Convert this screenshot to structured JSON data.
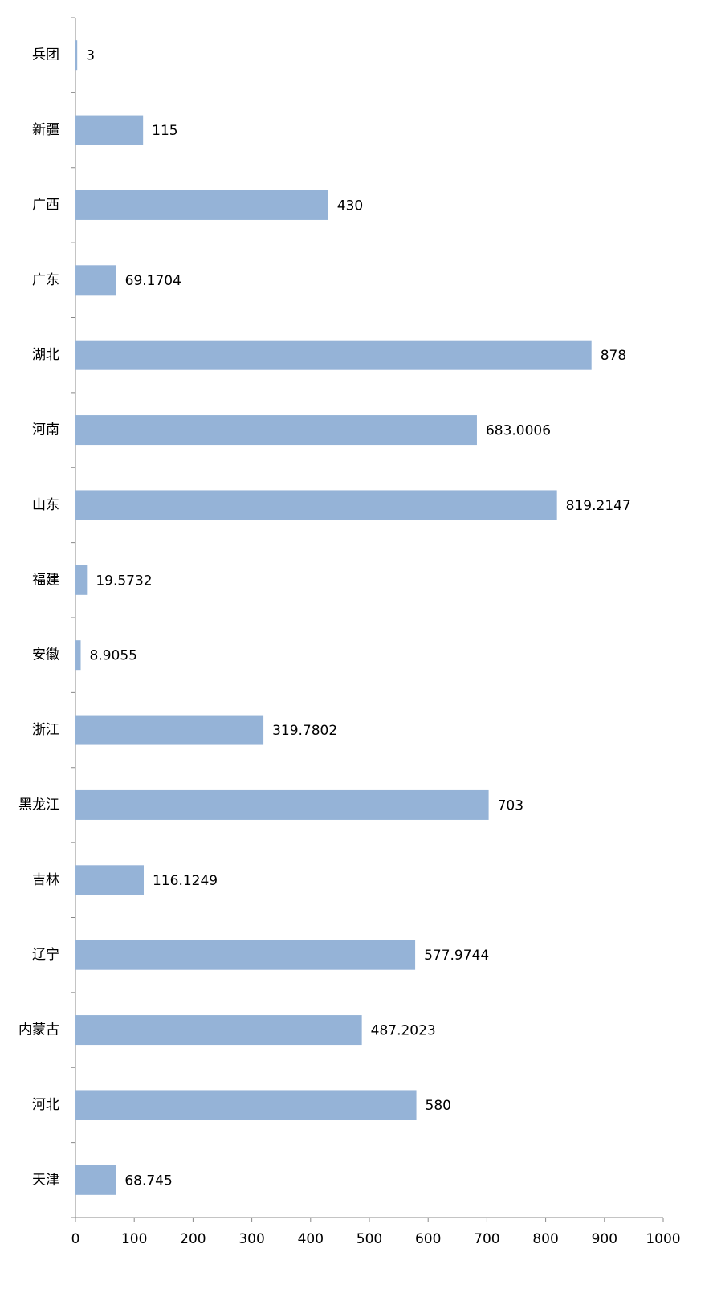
{
  "chart_data": {
    "type": "bar",
    "orientation": "horizontal",
    "categories": [
      "兵团",
      "新疆",
      "广西",
      "广东",
      "湖北",
      "河南",
      "山东",
      "福建",
      "安徽",
      "浙江",
      "黑龙江",
      "吉林",
      "辽宁",
      "内蒙古",
      "河北",
      "天津"
    ],
    "values": [
      3,
      115,
      430,
      69.1704,
      878,
      683.0006,
      819.2147,
      19.5732,
      8.9055,
      319.7802,
      703,
      116.1249,
      577.9744,
      487.2023,
      580,
      68.745
    ],
    "color": "#95b3d7",
    "xlim": [
      0,
      1000
    ],
    "xticks": [
      0,
      100,
      200,
      300,
      400,
      500,
      600,
      700,
      800,
      900,
      1000
    ],
    "grid": false
  }
}
